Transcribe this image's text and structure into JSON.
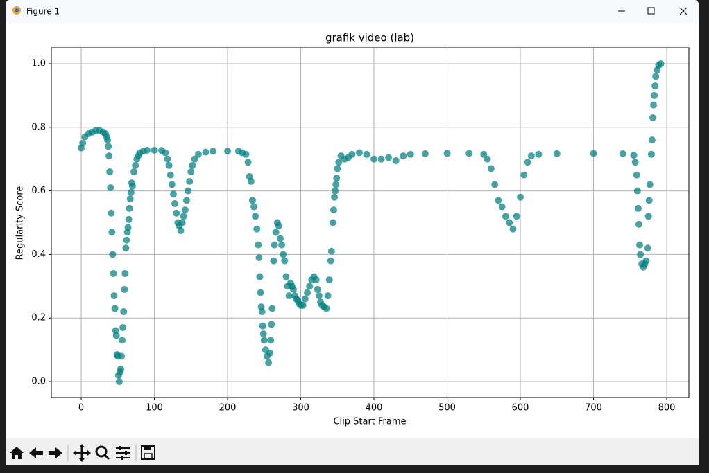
{
  "window": {
    "title": "Figure 1"
  },
  "chart_data": {
    "type": "scatter",
    "title": "grafik video (lab)",
    "x_label": "Clip Start Frame",
    "y_label": "Regularity Score",
    "color": "#008080",
    "grid": true,
    "xlim": [
      -40.8,
      830.3
    ],
    "ylim": [
      -0.05,
      1.05
    ],
    "xticks": [
      0,
      100,
      200,
      300,
      400,
      500,
      600,
      700,
      800
    ],
    "yticks": [
      {
        "value": 0,
        "label": "0.0"
      },
      {
        "value": 0.2,
        "label": "0.2"
      },
      {
        "value": 0.4,
        "label": "0.4"
      },
      {
        "value": 0.6,
        "label": "0.6"
      },
      {
        "value": 0.8,
        "label": "0.8"
      },
      {
        "value": 1,
        "label": "1.0"
      }
    ],
    "x": [
      0,
      2,
      5,
      10,
      15,
      20,
      25,
      30,
      33,
      35,
      36,
      37,
      38,
      39,
      40,
      41,
      42,
      43,
      44,
      45,
      46,
      47,
      48,
      49,
      50,
      51,
      52,
      53,
      54,
      55,
      56,
      57,
      58,
      59,
      60,
      61,
      62,
      63,
      64,
      65,
      66,
      67,
      68,
      69,
      70,
      72,
      74,
      76,
      78,
      80,
      85,
      90,
      100,
      110,
      115,
      118,
      120,
      122,
      124,
      126,
      128,
      130,
      132,
      134,
      136,
      138,
      140,
      142,
      144,
      146,
      148,
      150,
      152,
      155,
      160,
      170,
      180,
      200,
      215,
      220,
      225,
      228,
      230,
      232,
      234,
      236,
      238,
      240,
      242,
      243,
      244,
      245,
      246,
      247,
      248,
      249,
      250,
      252,
      254,
      256,
      258,
      259,
      260,
      261,
      263,
      264,
      266,
      268,
      270,
      272,
      274,
      276,
      278,
      280,
      282,
      284,
      286,
      288,
      290,
      292,
      294,
      296,
      298,
      300,
      303,
      306,
      309,
      312,
      315,
      318,
      321,
      323,
      325,
      327,
      329,
      332,
      335,
      337,
      339,
      341,
      342,
      344,
      345,
      346,
      347,
      348,
      349,
      350,
      352,
      355,
      360,
      365,
      370,
      380,
      390,
      400,
      410,
      420,
      430,
      440,
      450,
      470,
      500,
      530,
      550,
      555,
      560,
      565,
      570,
      575,
      580,
      585,
      590,
      595,
      600,
      605,
      610,
      615,
      625,
      650,
      700,
      740,
      755,
      757,
      759,
      760,
      761,
      762,
      763,
      764,
      766,
      768,
      770,
      772,
      774,
      775,
      776,
      777,
      779,
      780,
      781,
      782,
      783,
      784,
      785,
      787,
      789,
      792
    ],
    "values": [
      0.735,
      0.75,
      0.77,
      0.78,
      0.785,
      0.79,
      0.79,
      0.785,
      0.78,
      0.77,
      0.76,
      0.74,
      0.71,
      0.66,
      0.61,
      0.53,
      0.47,
      0.4,
      0.34,
      0.27,
      0.23,
      0.16,
      0.145,
      0.085,
      0.08,
      0.02,
      0.0,
      0.03,
      0.04,
      0.08,
      0.13,
      0.17,
      0.22,
      0.29,
      0.34,
      0.42,
      0.445,
      0.47,
      0.485,
      0.51,
      0.545,
      0.575,
      0.595,
      0.625,
      0.615,
      0.66,
      0.68,
      0.7,
      0.71,
      0.72,
      0.725,
      0.728,
      0.728,
      0.727,
      0.72,
      0.7,
      0.68,
      0.65,
      0.62,
      0.59,
      0.56,
      0.53,
      0.5,
      0.49,
      0.475,
      0.5,
      0.52,
      0.54,
      0.57,
      0.6,
      0.63,
      0.66,
      0.68,
      0.7,
      0.715,
      0.722,
      0.725,
      0.725,
      0.725,
      0.72,
      0.715,
      0.69,
      0.645,
      0.63,
      0.57,
      0.55,
      0.52,
      0.48,
      0.43,
      0.39,
      0.33,
      0.28,
      0.235,
      0.22,
      0.175,
      0.15,
      0.13,
      0.1,
      0.08,
      0.06,
      0.09,
      0.13,
      0.18,
      0.23,
      0.38,
      0.43,
      0.47,
      0.5,
      0.49,
      0.45,
      0.43,
      0.4,
      0.38,
      0.33,
      0.3,
      0.27,
      0.31,
      0.3,
      0.29,
      0.27,
      0.26,
      0.255,
      0.245,
      0.24,
      0.24,
      0.26,
      0.28,
      0.3,
      0.32,
      0.33,
      0.32,
      0.29,
      0.27,
      0.25,
      0.24,
      0.235,
      0.23,
      0.27,
      0.32,
      0.38,
      0.41,
      0.5,
      0.54,
      0.58,
      0.6,
      0.62,
      0.64,
      0.67,
      0.69,
      0.71,
      0.7,
      0.705,
      0.715,
      0.72,
      0.715,
      0.7,
      0.7,
      0.705,
      0.695,
      0.71,
      0.715,
      0.717,
      0.718,
      0.718,
      0.715,
      0.7,
      0.67,
      0.62,
      0.57,
      0.55,
      0.52,
      0.5,
      0.48,
      0.52,
      0.58,
      0.65,
      0.69,
      0.71,
      0.715,
      0.717,
      0.718,
      0.717,
      0.712,
      0.69,
      0.65,
      0.6,
      0.545,
      0.495,
      0.43,
      0.4,
      0.37,
      0.36,
      0.37,
      0.38,
      0.42,
      0.52,
      0.57,
      0.62,
      0.715,
      0.76,
      0.83,
      0.87,
      0.9,
      0.93,
      0.96,
      0.98,
      0.995,
      1.0
    ]
  }
}
